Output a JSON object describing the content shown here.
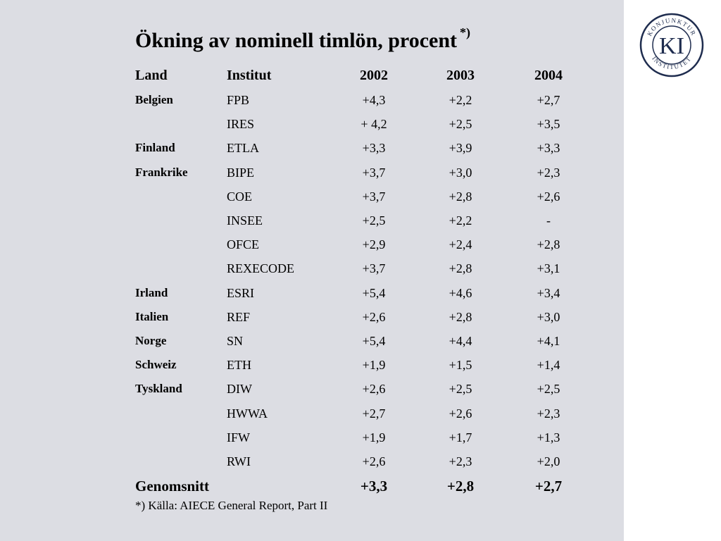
{
  "title": "Ökning av nominell timlön, procent",
  "title_superscript": "*)",
  "headers": {
    "land": "Land",
    "institut": "Institut",
    "y2002": "2002",
    "y2003": "2003",
    "y2004": "2004"
  },
  "rows": [
    {
      "land": "Belgien",
      "institut": "FPB",
      "y2002": "+4,3",
      "y2003": "+2,2",
      "y2004": "+2,7"
    },
    {
      "land": "",
      "institut": "IRES",
      "y2002": "+ 4,2",
      "y2003": "+2,5",
      "y2004": "+3,5"
    },
    {
      "land": "Finland",
      "institut": "ETLA",
      "y2002": "+3,3",
      "y2003": "+3,9",
      "y2004": "+3,3"
    },
    {
      "land": "Frankrike",
      "institut": "BIPE",
      "y2002": "+3,7",
      "y2003": "+3,0",
      "y2004": "+2,3"
    },
    {
      "land": "",
      "institut": "COE",
      "y2002": "+3,7",
      "y2003": "+2,8",
      "y2004": "+2,6"
    },
    {
      "land": "",
      "institut": "INSEE",
      "y2002": "+2,5",
      "y2003": "+2,2",
      "y2004": "-"
    },
    {
      "land": "",
      "institut": "OFCE",
      "y2002": "+2,9",
      "y2003": "+2,4",
      "y2004": "+2,8"
    },
    {
      "land": "",
      "institut": "REXECODE",
      "y2002": "+3,7",
      "y2003": "+2,8",
      "y2004": "+3,1"
    },
    {
      "land": "Irland",
      "institut": "ESRI",
      "y2002": "+5,4",
      "y2003": "+4,6",
      "y2004": "+3,4"
    },
    {
      "land": "Italien",
      "institut": "REF",
      "y2002": "+2,6",
      "y2003": "+2,8",
      "y2004": "+3,0"
    },
    {
      "land": "Norge",
      "institut": "SN",
      "y2002": "+5,4",
      "y2003": "+4,4",
      "y2004": "+4,1"
    },
    {
      "land": "Schweiz",
      "institut": "ETH",
      "y2002": "+1,9",
      "y2003": "+1,5",
      "y2004": "+1,4"
    },
    {
      "land": "Tyskland",
      "institut": "DIW",
      "y2002": "+2,6",
      "y2003": "+2,5",
      "y2004": "+2,5"
    },
    {
      "land": "",
      "institut": "HWWA",
      "y2002": "+2,7",
      "y2003": "+2,6",
      "y2004": "+2,3"
    },
    {
      "land": "",
      "institut": "IFW",
      "y2002": "+1,9",
      "y2003": "+1,7",
      "y2004": "+1,3"
    },
    {
      "land": "",
      "institut": "RWI",
      "y2002": "+2,6",
      "y2003": "+2,3",
      "y2004": "+2,0"
    }
  ],
  "average": {
    "label": "Genomsnitt",
    "y2002": "+3,3",
    "y2003": "+2,8",
    "y2004": "+2,7"
  },
  "footnote": "*) Källa: AIECE General Report, Part II",
  "logo": {
    "initials": "KI",
    "ring_text": "KONJUNKTUR INSTITUTET",
    "color": "#1f2d4f"
  }
}
